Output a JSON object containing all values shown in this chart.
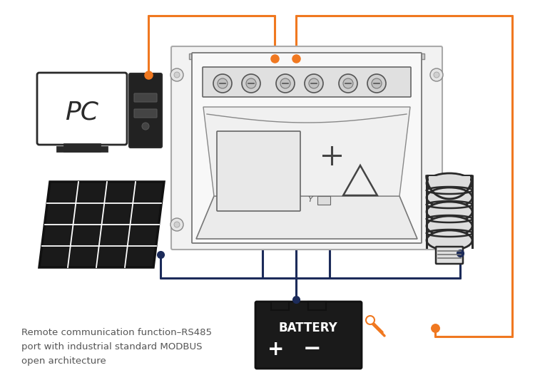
{
  "bg_color": "#ffffff",
  "orange": "#F07820",
  "dark_blue": "#1C2B5A",
  "dark": "#2a2a2a",
  "annotation_text": "Remote communication function–RS485\nport with industrial standard MODBUS\nopen architecture",
  "battery_label": "BATTERY",
  "pc_label": "PC",
  "figsize": [
    7.5,
    5.4
  ],
  "dpi": 100
}
